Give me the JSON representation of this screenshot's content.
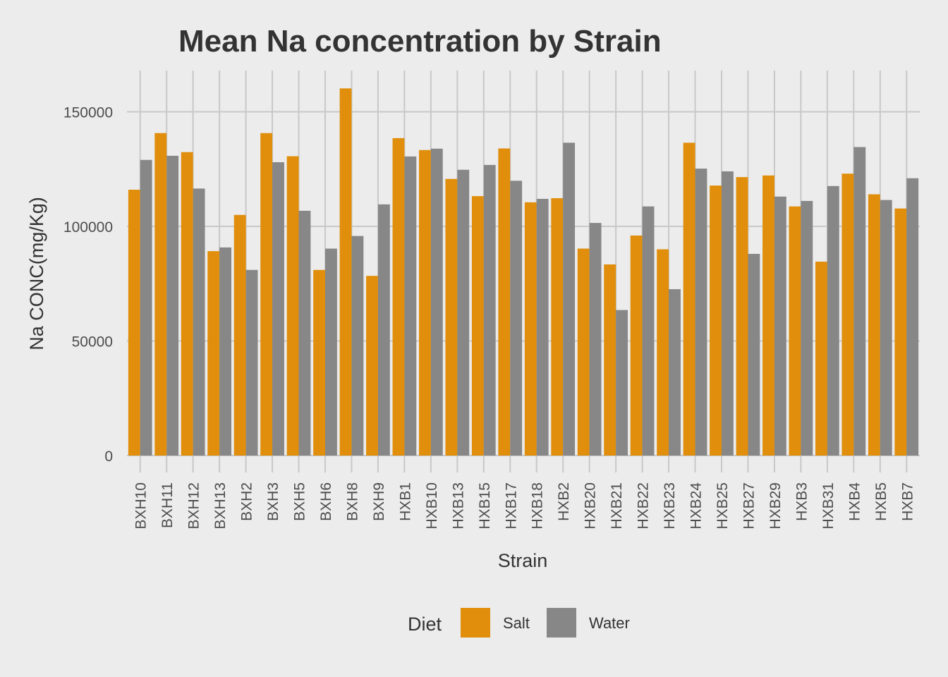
{
  "chart_data": {
    "type": "bar",
    "title": "Mean Na concentration by Strain",
    "xlabel": "Strain",
    "ylabel": "Na CONC(mg/Kg)",
    "ylim": [
      0,
      168000
    ],
    "yticks": [
      0,
      50000,
      100000,
      150000
    ],
    "grid": true,
    "legend": {
      "title": "Diet",
      "position": "bottom"
    },
    "categories": [
      "BXH10",
      "BXH11",
      "BXH12",
      "BXH13",
      "BXH2",
      "BXH3",
      "BXH5",
      "BXH6",
      "BXH8",
      "BXH9",
      "HXB1",
      "HXB10",
      "HXB13",
      "HXB15",
      "HXB17",
      "HXB18",
      "HXB2",
      "HXB20",
      "HXB21",
      "HXB22",
      "HXB23",
      "HXB24",
      "HXB25",
      "HXB27",
      "HXB29",
      "HXB3",
      "HXB31",
      "HXB4",
      "HXB5",
      "HXB7"
    ],
    "series": [
      {
        "name": "Salt",
        "color": "#E08E0B",
        "values": [
          116000,
          140700,
          132400,
          89200,
          105000,
          140700,
          130600,
          81000,
          160200,
          78400,
          138500,
          133300,
          120700,
          113200,
          134000,
          110500,
          112300,
          90300,
          83400,
          96000,
          90000,
          136500,
          117800,
          121500,
          122200,
          108700,
          84600,
          123000,
          114000,
          107800
        ]
      },
      {
        "name": "Water",
        "color": "#878787",
        "values": [
          129000,
          130800,
          116500,
          90800,
          81000,
          128000,
          106800,
          90300,
          95800,
          109600,
          130500,
          133900,
          124700,
          126800,
          119900,
          112000,
          136500,
          101500,
          63500,
          108700,
          72600,
          125200,
          124000,
          88000,
          113000,
          111100,
          117600,
          134600,
          111500,
          121000
        ]
      }
    ]
  }
}
